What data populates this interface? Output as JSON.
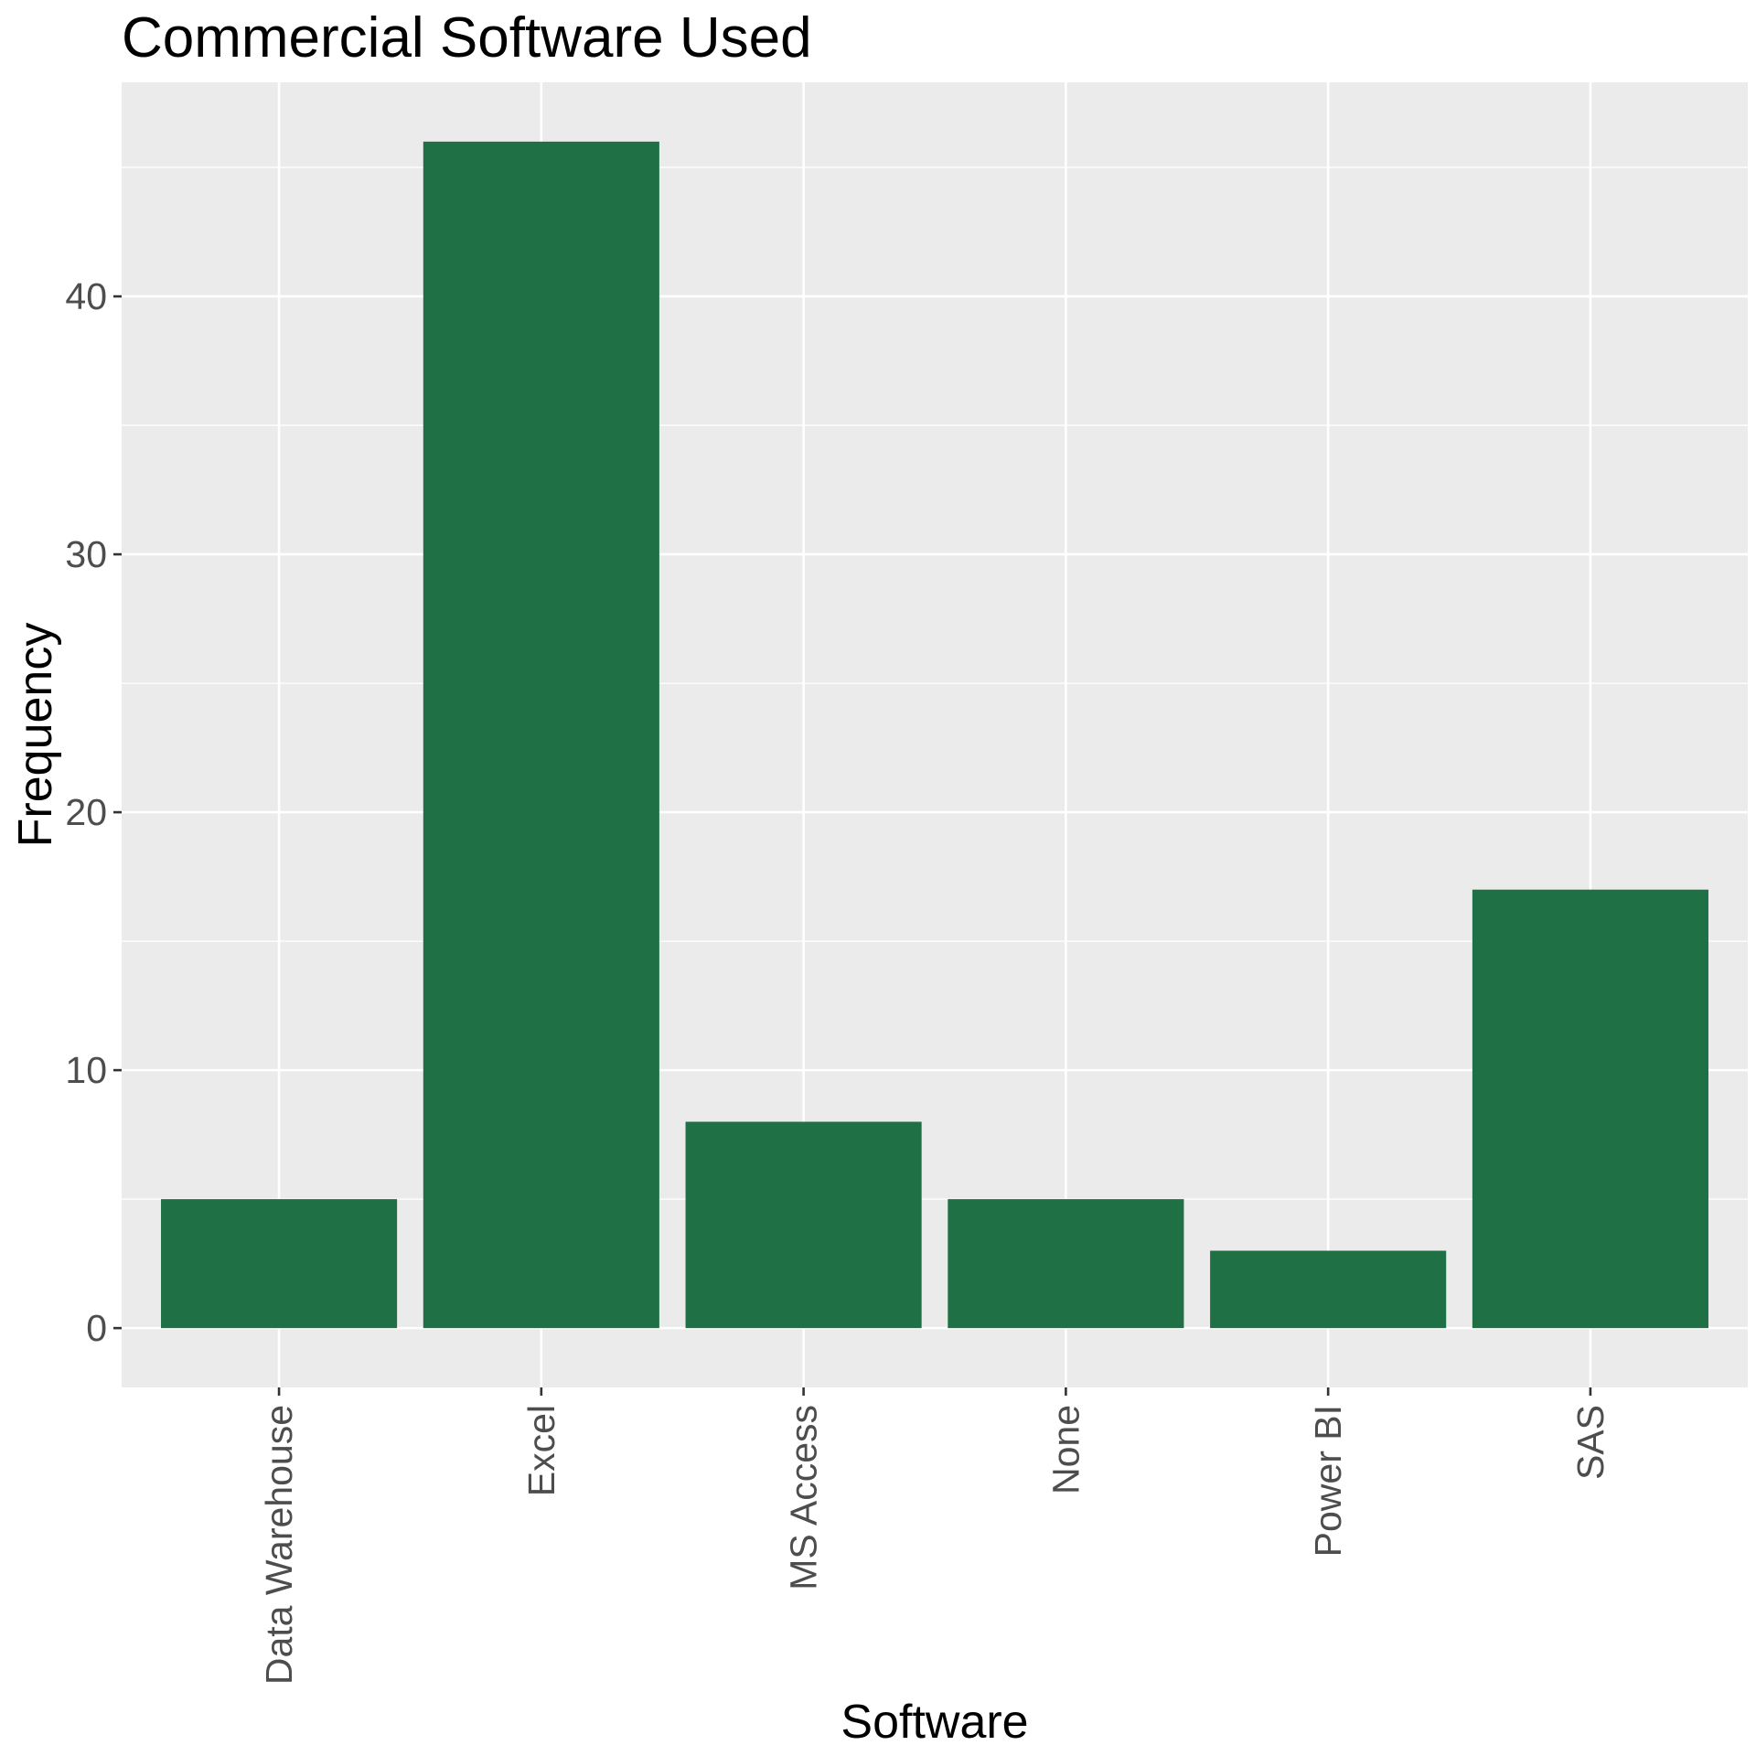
{
  "chart_data": {
    "type": "bar",
    "title": "Commercial Software Used",
    "xlabel": "Software",
    "ylabel": "Frequency",
    "categories": [
      "Data Warehouse",
      "Excel",
      "MS Access",
      "None",
      "Power BI",
      "SAS"
    ],
    "values": [
      5,
      46,
      8,
      5,
      3,
      17
    ],
    "ylim": [
      -2.3,
      48.3
    ],
    "yticks": [
      0,
      10,
      20,
      30,
      40
    ],
    "y_minor_ticks": [
      5,
      15,
      25,
      35,
      45
    ],
    "grid": true,
    "legend": "none",
    "colors": {
      "bar": "#1f7045",
      "panel": "#ebebeb",
      "grid": "#ffffff",
      "tick": "#333333"
    }
  }
}
